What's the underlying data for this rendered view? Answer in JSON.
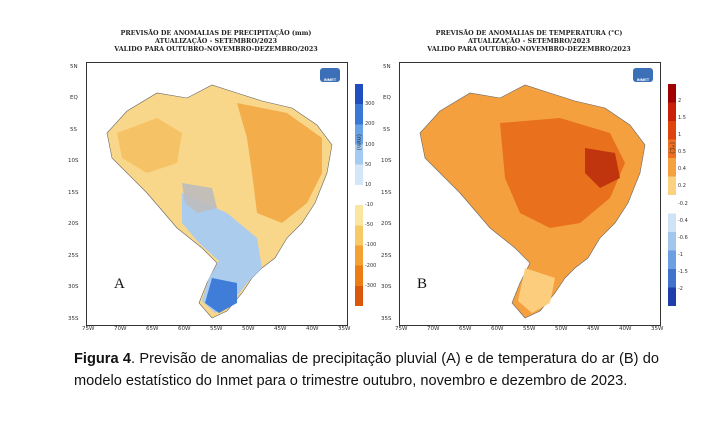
{
  "panel_a": {
    "title_lines": [
      "PREVISÃO DE ANOMALIAS DE PRECIPITAÇÃO (mm)",
      "ATUALIZAÇÃO - SETEMBRO/2023",
      "VALIDO PARA OUTUBRO-NOVEMBRO-DEZEMBRO/2023"
    ],
    "letter": "A",
    "y_ticks": [
      "5N",
      "EQ",
      "5S",
      "10S",
      "15S",
      "20S",
      "25S",
      "30S",
      "35S"
    ],
    "x_ticks": [
      "75W",
      "70W",
      "65W",
      "60W",
      "55W",
      "50W",
      "45W",
      "40W",
      "35W"
    ],
    "colorbar": {
      "unit": "(mm)",
      "labels": [
        "300",
        "200",
        "100",
        "50",
        "10",
        "-10",
        "-50",
        "-100",
        "-200",
        "-300"
      ],
      "colors": [
        "#1f4fbf",
        "#3a78d8",
        "#6aa2e8",
        "#a6cbf2",
        "#d4e6f8",
        "#ffffff",
        "#fbe6a0",
        "#f8c967",
        "#f2a132",
        "#ec7c14",
        "#d9580b"
      ]
    },
    "logo": "INMET"
  },
  "panel_b": {
    "title_lines": [
      "PREVISÃO DE ANOMALIAS DE TEMPERATURA (°C)",
      "ATUALIZAÇÃO - SETEMBRO/2023",
      "VALIDO PARA OUTUBRO-NOVEMBRO-DEZEMBRO/2023"
    ],
    "letter": "B",
    "y_ticks": [
      "5N",
      "EQ",
      "5S",
      "10S",
      "15S",
      "20S",
      "25S",
      "30S",
      "35S"
    ],
    "x_ticks": [
      "75W",
      "70W",
      "65W",
      "60W",
      "55W",
      "50W",
      "45W",
      "40W",
      "35W"
    ],
    "colorbar": {
      "unit": "(°C)",
      "labels": [
        "2",
        "1.5",
        "1",
        "0.5",
        "0.4",
        "0.2",
        "-0.2",
        "-0.4",
        "-0.6",
        "-1",
        "-1.5",
        "-2"
      ],
      "colors": [
        "#a00000",
        "#c8200a",
        "#e0440d",
        "#ef7020",
        "#f6a040",
        "#fbd080",
        "#ffffff",
        "#cfe3f6",
        "#a2c6ee",
        "#6e9fe0",
        "#3f73cc",
        "#1f3fa8"
      ]
    },
    "logo": "INMET"
  },
  "caption": {
    "label": "Figura 4",
    "text": ". Previsão de anomalias de precipitação pluvial (A) e de temperatura do ar (B) do modelo estatístico do Inmet para o trimestre outubro, novembro e dezembro de 2023."
  }
}
